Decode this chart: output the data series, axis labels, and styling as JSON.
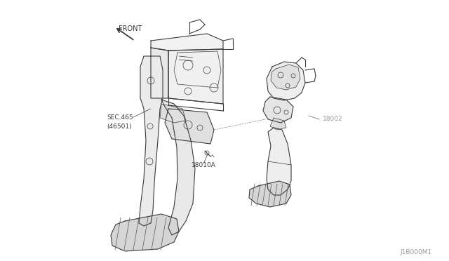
{
  "bg_color": "#ffffff",
  "line_color": "#3a3a3a",
  "label_color": "#999999",
  "dark_color": "#555555",
  "labels": {
    "front": "FRONT",
    "sec": "SEC.465\n(46501)",
    "part1": "18010A",
    "part2": "18002",
    "diagram_id": "J1B000M1"
  },
  "figsize": [
    6.4,
    3.72
  ],
  "dpi": 100
}
